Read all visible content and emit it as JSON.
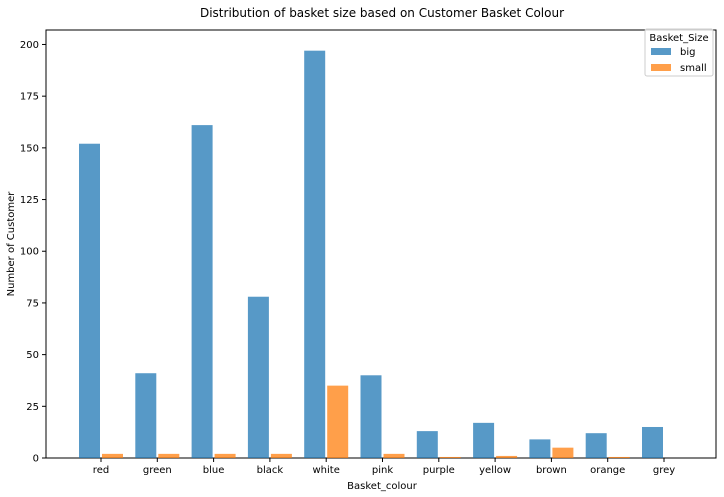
{
  "chart_data": {
    "type": "bar",
    "title": "Distribution of basket size based on Customer Basket Colour",
    "xlabel": "Basket_colour",
    "ylabel": "Number of Customer",
    "categories": [
      "red",
      "green",
      "blue",
      "black",
      "white",
      "pink",
      "purple",
      "yellow",
      "brown",
      "orange",
      "grey"
    ],
    "series": [
      {
        "name": "big",
        "values": [
          152,
          41,
          161,
          78,
          197,
          40,
          13,
          17,
          9,
          12,
          15
        ],
        "color": "#1f77b4"
      },
      {
        "name": "small",
        "values": [
          2,
          2,
          2,
          2,
          35,
          2,
          0.5,
          1,
          5,
          0.5,
          0
        ],
        "color": "#ff7f0e"
      }
    ],
    "ylim": [
      0,
      207
    ],
    "yticks": [
      0,
      25,
      50,
      75,
      100,
      125,
      150,
      175,
      200
    ],
    "legend": {
      "title": "Basket_Size",
      "placement": "top-right"
    },
    "grid": false,
    "bar_opacity": 0.75
  }
}
